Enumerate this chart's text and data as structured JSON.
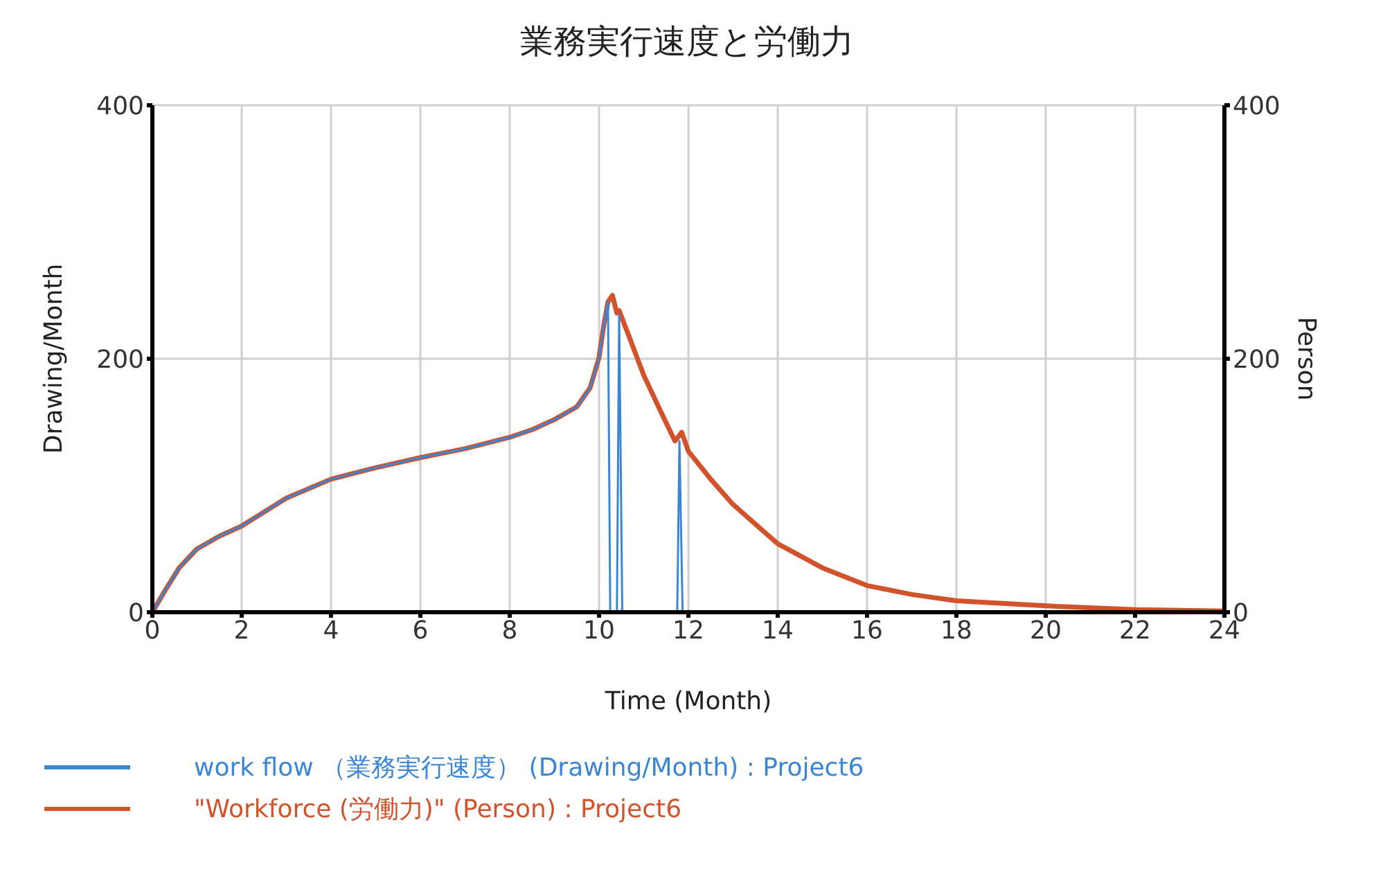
{
  "chart_data": {
    "type": "line",
    "title": "業務実行速度と労働力",
    "xlabel": "Time (Month)",
    "ylabel": "Drawing/Month",
    "y2label": "Person",
    "xlim": [
      0,
      24
    ],
    "xticks": [
      0,
      2,
      4,
      6,
      8,
      10,
      12,
      14,
      16,
      18,
      20,
      22,
      24
    ],
    "ylim": [
      0,
      400
    ],
    "yticks": [
      0,
      200,
      400
    ],
    "y2lim": [
      0,
      400
    ],
    "y2ticks": [
      0,
      200,
      400
    ],
    "grid": true,
    "legend": "bottom",
    "line_style": "solid",
    "series": [
      {
        "name": "work flow （業務実行速度） (Drawing/Month) : Project6",
        "color": "#3a86d6",
        "x": [
          0,
          0.3,
          0.6,
          1,
          1.5,
          2,
          3,
          4,
          5,
          6,
          7,
          8,
          8.5,
          9,
          9.5,
          9.8,
          10,
          10.1,
          10.2,
          10.25,
          10.4,
          10.45,
          10.52,
          11.75,
          11.8,
          11.87,
          24
        ],
        "values": [
          0,
          18,
          35,
          50,
          60,
          68,
          90,
          105,
          114,
          122,
          129,
          138,
          144,
          152,
          162,
          177,
          201,
          225,
          245,
          0,
          0,
          235,
          0,
          0,
          135,
          0,
          0
        ]
      },
      {
        "name": "\"Workforce (労働力)\" (Person) : Project6",
        "color": "#d2522b",
        "axis": "y2",
        "x": [
          0,
          0.3,
          0.6,
          1,
          1.5,
          2,
          3,
          4,
          5,
          6,
          7,
          8,
          8.5,
          9,
          9.5,
          9.8,
          10,
          10.1,
          10.2,
          10.3,
          10.4,
          10.45,
          10.7,
          11,
          11.4,
          11.7,
          11.85,
          12,
          12.5,
          13,
          14,
          15,
          16,
          17,
          18,
          20,
          22,
          24
        ],
        "values": [
          0,
          18,
          35,
          50,
          60,
          68,
          90,
          105,
          114,
          122,
          129,
          138,
          144,
          152,
          162,
          177,
          201,
          225,
          245,
          250,
          236,
          238,
          215,
          187,
          157,
          135,
          142,
          127,
          105,
          85,
          54,
          35,
          21,
          14,
          9,
          5,
          2,
          1
        ]
      }
    ]
  }
}
